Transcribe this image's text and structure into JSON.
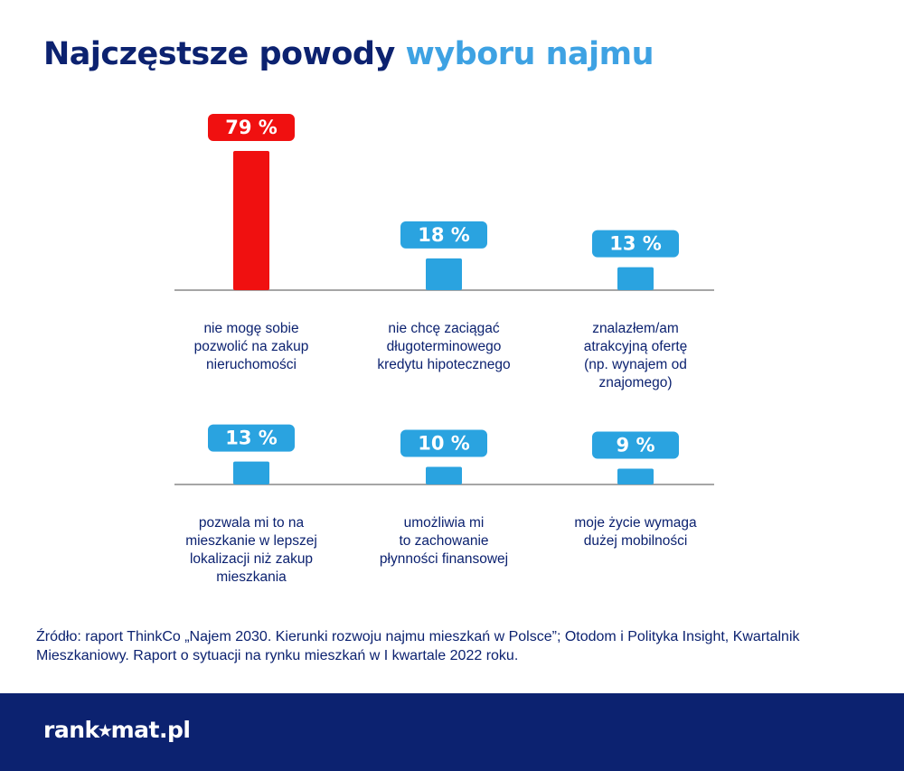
{
  "title": {
    "part1": "Najczęstsze powody",
    "part2": "wyboru najmu"
  },
  "colors": {
    "highlight": "#f01010",
    "bar": "#2aa3e0",
    "title_dark": "#0c2270",
    "title_light": "#3ea2e3",
    "axis": "#888888",
    "footer": "#0c2270"
  },
  "chart_data": [
    {
      "type": "bar",
      "unit": "%",
      "categories": [
        [
          "nie mogę sobie",
          "pozwolić na zakup",
          "nieruchomości"
        ],
        [
          "nie chcę zaciągać",
          "długoterminowego",
          "kredytu hipotecznego"
        ],
        [
          "znalazłem/am",
          "atrakcyjną ofertę",
          "(np. wynajem od",
          "znajomego)"
        ]
      ],
      "values": [
        79,
        18,
        13
      ],
      "labels": [
        "79 %",
        "18 %",
        "13 %"
      ],
      "highlight_index": 0
    },
    {
      "type": "bar",
      "unit": "%",
      "categories": [
        [
          "pozwala mi to na",
          "mieszkanie w lepszej",
          "lokalizacji niż zakup",
          "mieszkania"
        ],
        [
          "umożliwia mi",
          "to zachowanie",
          "płynności finansowej"
        ],
        [
          "moje życie wymaga",
          "dużej mobilności"
        ]
      ],
      "values": [
        13,
        10,
        9
      ],
      "labels": [
        "13 %",
        "10 %",
        "9 %"
      ],
      "highlight_index": null
    }
  ],
  "source": "Źródło: raport ThinkCo „Najem 2030. Kierunki rozwoju najmu mieszkań w Polsce”; Otodom i Polityka Insight, Kwartalnik Mieszkaniowy. Raport o sytuacji na rynku mieszkań w I kwartale 2022 roku.",
  "footer": {
    "logo": "rank⭑mat.pl"
  }
}
